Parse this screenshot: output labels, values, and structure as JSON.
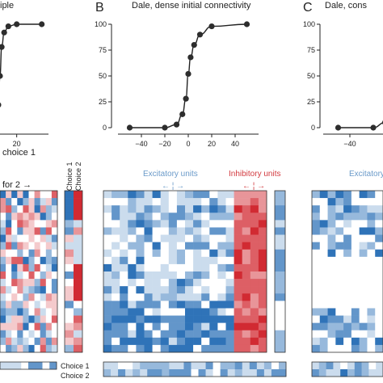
{
  "panels": [
    {
      "letter": "",
      "title": "iple"
    },
    {
      "letter": "B",
      "title": "Dale, dense initial connectivity"
    },
    {
      "letter": "C",
      "title": "Dale, cons"
    }
  ],
  "labels": {
    "choice1_fragment": "choice 1",
    "prefer2_fragment": "for 2 →",
    "excitatory": "Excitatory units",
    "inhibitory": "Inhibitory units",
    "excitatory_c": "Excitatory",
    "arrows_exc": "←  ¦  →",
    "arrows_inh": "←  ¦  →",
    "choice1_vertical": "Choice 1",
    "choice2_vertical": "Choice 2",
    "legend_choice1": "Choice 1",
    "legend_choice2": "Choice 2"
  },
  "colors": {
    "blue": "#2f73b8",
    "red": "#d12a32",
    "white": "#ffffff",
    "text": "#222222",
    "excitatory_label": "#6a9ac9",
    "inhibitory_label": "#d23a3f"
  },
  "chart_data": [
    {
      "type": "line",
      "panel": "A",
      "title": "iple",
      "x": [
        -50,
        -20,
        -10,
        -5,
        -2,
        0,
        2,
        5,
        10,
        20,
        50
      ],
      "values": [
        0,
        0,
        2,
        8,
        22,
        50,
        78,
        92,
        98,
        100,
        100
      ],
      "xticks": [
        20
      ],
      "xlim": [
        -60,
        60
      ],
      "ylim": [
        0,
        100
      ]
    },
    {
      "type": "line",
      "panel": "B",
      "title": "Dale, dense initial connectivity",
      "x": [
        -50,
        -20,
        -10,
        -5,
        -2,
        0,
        2,
        5,
        10,
        20,
        50
      ],
      "values": [
        0,
        0,
        3,
        13,
        28,
        52,
        68,
        80,
        90,
        98,
        100
      ],
      "xticks": [
        -40,
        -20,
        0,
        20,
        40
      ],
      "yticks": [
        0,
        25,
        50,
        75,
        100
      ],
      "xlim": [
        -60,
        60
      ],
      "ylim": [
        0,
        100
      ]
    },
    {
      "type": "line",
      "panel": "C",
      "title": "Dale, cons",
      "x": [
        -50,
        -20,
        -10
      ],
      "values": [
        0,
        0,
        5
      ],
      "xticks": [
        -40
      ],
      "yticks": [
        0,
        25,
        50,
        75,
        100
      ],
      "xlim": [
        -60,
        60
      ],
      "ylim": [
        0,
        100
      ]
    },
    {
      "type": "heatmap",
      "panel": "A",
      "scale": "red-white-blue",
      "rows": 22,
      "cols": 10,
      "seed": 7
    },
    {
      "type": "heatmap",
      "panel": "B",
      "scale": "red-white-blue",
      "rows": 22,
      "cols": 20,
      "excitatory_cols": 16,
      "inhibitory_cols": 4,
      "seed": 21
    },
    {
      "type": "heatmap",
      "panel": "C",
      "scale": "red-white-blue",
      "rows": 22,
      "cols": 9,
      "seed": 33
    }
  ]
}
